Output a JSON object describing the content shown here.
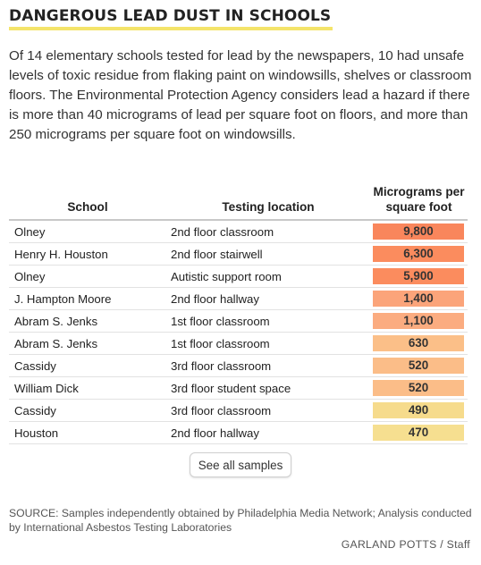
{
  "title": "DANGEROUS LEAD DUST IN SCHOOLS",
  "intro": "Of 14 elementary schools tested for lead by the newspapers, 10 had unsafe levels of toxic residue from flaking paint on windowsills, shelves or classroom floors. The Environmental Protection Agency considers lead a hazard if there is more than 40 micrograms of lead per square foot on floors, and more than 250 micrograms per square foot on windowsills.",
  "chart_data": {
    "type": "table",
    "columns": [
      "School",
      "Testing location",
      "Micrograms per square foot"
    ],
    "rows": [
      {
        "school": "Olney",
        "location": "2nd floor classroom",
        "value": 9800,
        "display": "9,800",
        "color": "#f9865c"
      },
      {
        "school": "Henry H. Houston",
        "location": "2nd floor stairwell",
        "value": 6300,
        "display": "6,300",
        "color": "#fb8c5e"
      },
      {
        "school": "Olney",
        "location": "Autistic support room",
        "value": 5900,
        "display": "5,900",
        "color": "#fb8c5e"
      },
      {
        "school": "J. Hampton Moore",
        "location": "2nd floor hallway",
        "value": 1400,
        "display": "1,400",
        "color": "#fba47a"
      },
      {
        "school": "Abram S. Jenks",
        "location": "1st floor classroom",
        "value": 1100,
        "display": "1,100",
        "color": "#fbac80"
      },
      {
        "school": "Abram S. Jenks",
        "location": "1st floor classroom",
        "value": 630,
        "display": "630",
        "color": "#fbbf88"
      },
      {
        "school": "Cassidy",
        "location": "3rd floor classroom",
        "value": 520,
        "display": "520",
        "color": "#fbbd88"
      },
      {
        "school": "William Dick",
        "location": "3rd floor student space",
        "value": 520,
        "display": "520",
        "color": "#fbbd88"
      },
      {
        "school": "Cassidy",
        "location": "3rd floor classroom",
        "value": 490,
        "display": "490",
        "color": "#f6db8c"
      },
      {
        "school": "Houston",
        "location": "2nd floor hallway",
        "value": 470,
        "display": "470",
        "color": "#f6df90"
      }
    ]
  },
  "button_label": "See all samples",
  "source": "SOURCE: Samples independently obtained by Philadelphia Media Network; Analysis conducted by International Asbestos Testing Laboratories",
  "credit": "GARLAND POTTS / Staff"
}
